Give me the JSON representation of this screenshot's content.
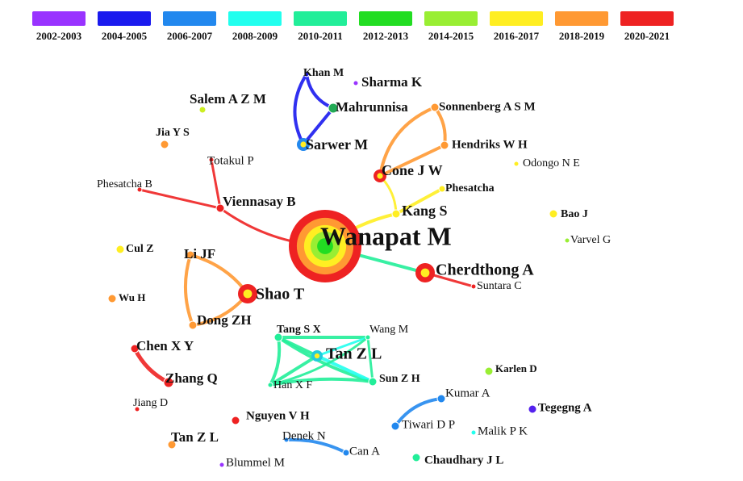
{
  "legend": [
    {
      "label": "2002-2003",
      "color": "#9933ff"
    },
    {
      "label": "2004-2005",
      "color": "#1a1aee"
    },
    {
      "label": "2006-2007",
      "color": "#2288ee"
    },
    {
      "label": "2008-2009",
      "color": "#22ffee"
    },
    {
      "label": "2010-2011",
      "color": "#22ee99"
    },
    {
      "label": "2012-2013",
      "color": "#22dd22"
    },
    {
      "label": "2014-2015",
      "color": "#99ee33"
    },
    {
      "label": "2016-2017",
      "color": "#ffee22"
    },
    {
      "label": "2018-2019",
      "color": "#ff9933"
    },
    {
      "label": "2020-2021",
      "color": "#ee2222"
    }
  ],
  "nodes": [
    {
      "label": "Wanapat M",
      "color": "#ee2222"
    },
    {
      "label": "Cherdthong A",
      "color": "#ee2222"
    },
    {
      "label": "Kang S",
      "color": "#ffee22"
    },
    {
      "label": "Phesatcha",
      "color": "#ffee22"
    },
    {
      "label": "Cone J W",
      "color": "#ee2222"
    },
    {
      "label": "Hendriks W H",
      "color": "#ff9933"
    },
    {
      "label": "Sonnenberg A S M",
      "color": "#ff9933"
    },
    {
      "label": "Odongo N E",
      "color": "#ffee22"
    },
    {
      "label": "Sarwer M",
      "color": "#2288ee"
    },
    {
      "label": "Mahrunnisa",
      "color": "#22aa55"
    },
    {
      "label": "Khan M",
      "color": "#1a1aee"
    },
    {
      "label": "Sharma K",
      "color": "#9933ff"
    },
    {
      "label": "Salem A Z M",
      "color": "#ccee22"
    },
    {
      "label": "Jia Y S",
      "color": "#ff9933"
    },
    {
      "label": "Totakul P",
      "color": "#ee2222"
    },
    {
      "label": "Phesatcha B",
      "color": "#ee2222"
    },
    {
      "label": "Viennasay B",
      "color": "#ee2222"
    },
    {
      "label": "Bao J",
      "color": "#ffee22"
    },
    {
      "label": "Varvel G",
      "color": "#99ee33"
    },
    {
      "label": "Suntara C",
      "color": "#ee2222"
    },
    {
      "label": "Cul Z",
      "color": "#ffee22"
    },
    {
      "label": "Li JF",
      "color": "#ff9933"
    },
    {
      "label": "Shao T",
      "color": "#ee2222"
    },
    {
      "label": "Wu H",
      "color": "#ff9933"
    },
    {
      "label": "Dong ZH",
      "color": "#ff9933"
    },
    {
      "label": "Chen X Y",
      "color": "#ee2222"
    },
    {
      "label": "Zhang Q",
      "color": "#ee2222"
    },
    {
      "label": "Jiang D",
      "color": "#ee2222"
    },
    {
      "label": "Tang S X",
      "color": "#22ee99"
    },
    {
      "label": "Wang M",
      "color": "#22ee99"
    },
    {
      "label": "Tan Z L",
      "color": "#22ccdd"
    },
    {
      "label": "Han X F",
      "color": "#22ee99"
    },
    {
      "label": "Sun Z H",
      "color": "#22ee99"
    },
    {
      "label": "Karlen D",
      "color": "#99ee33"
    },
    {
      "label": "Kumar A",
      "color": "#2288ee"
    },
    {
      "label": "Tiwari D P",
      "color": "#2288ee"
    },
    {
      "label": "Malik P K",
      "color": "#22ffee"
    },
    {
      "label": "Tegegng A",
      "color": "#5522ee"
    },
    {
      "label": "Nguyen V H",
      "color": "#ee2222"
    },
    {
      "label": "Denek N",
      "color": "#2288ee"
    },
    {
      "label": "Can A",
      "color": "#2288ee"
    },
    {
      "label": "Tan Z L",
      "color": "#ff9933"
    },
    {
      "label": "Chaudhary J L",
      "color": "#22ee99"
    },
    {
      "label": "Blummel M",
      "color": "#9933ff"
    }
  ]
}
